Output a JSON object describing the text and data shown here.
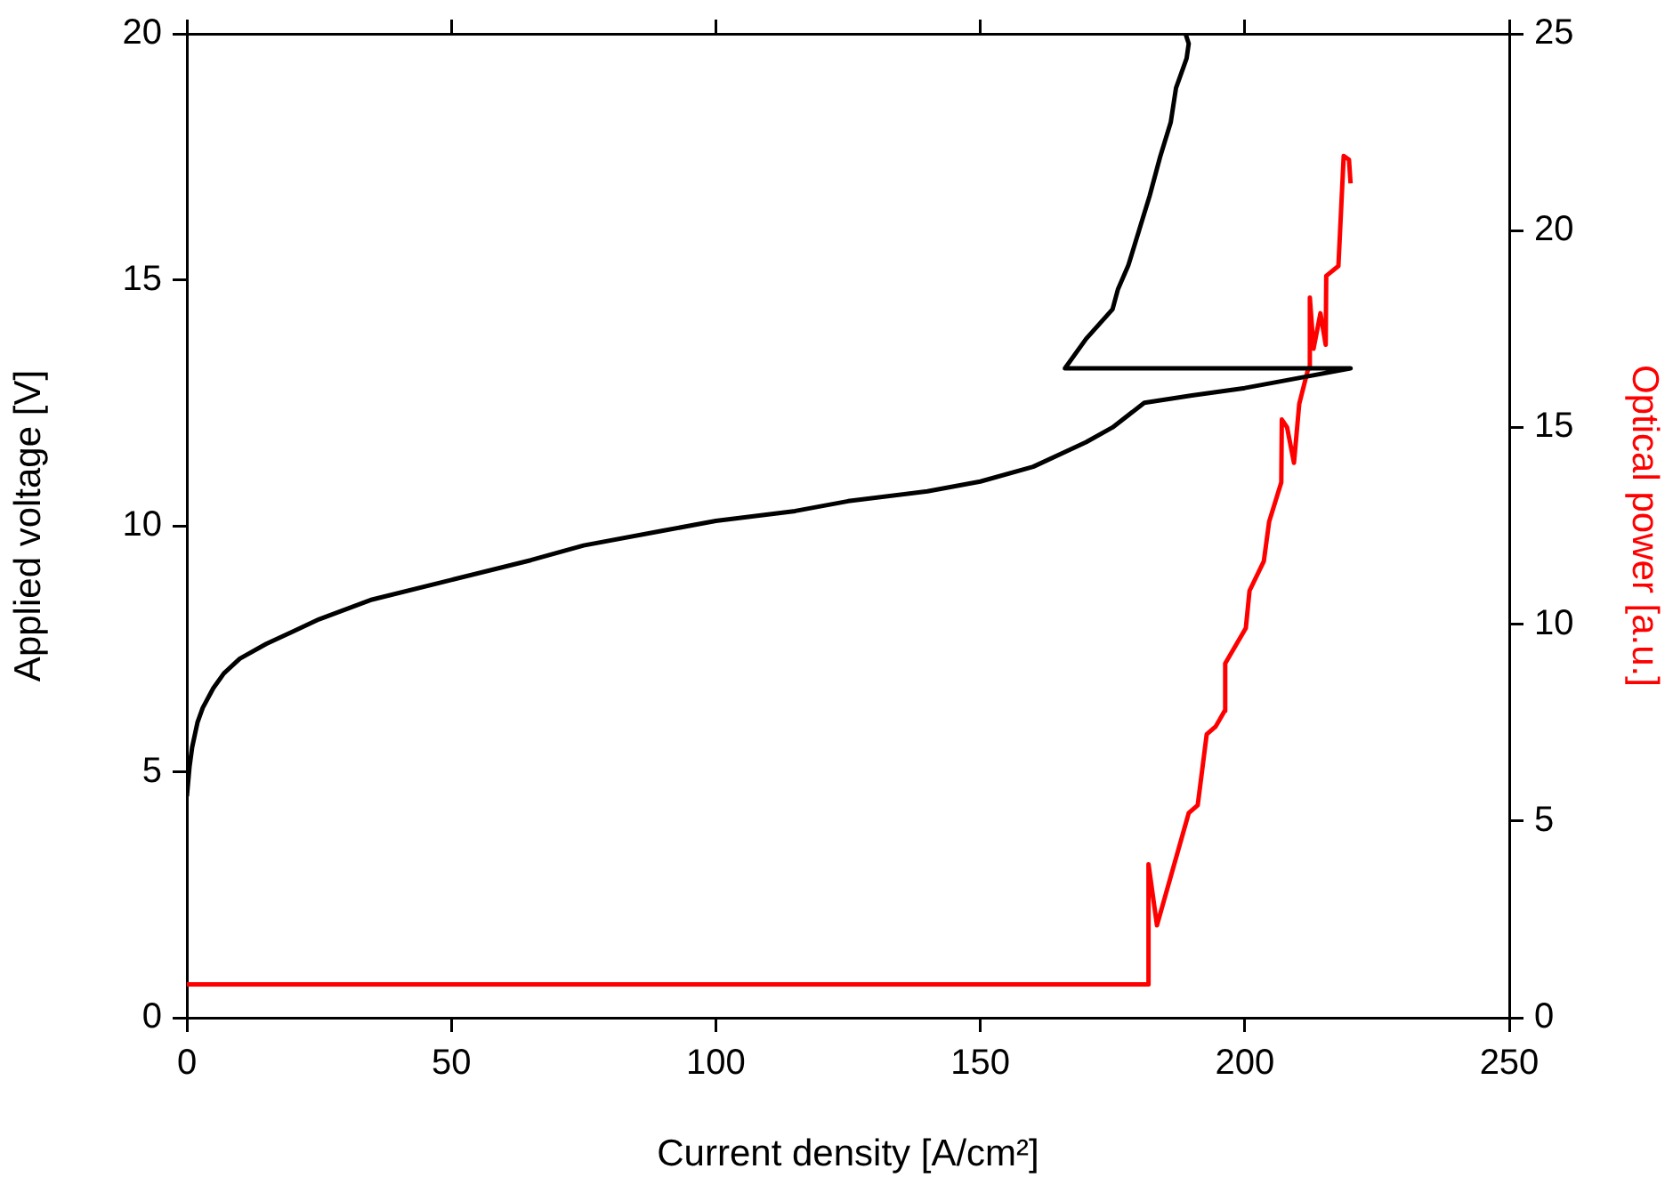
{
  "chart_data": {
    "type": "line",
    "xlabel": "Current density [A/cm²]",
    "ylabel": "Applied voltage [V]",
    "y2label": "Optical power [a.u.]",
    "xlim": [
      0,
      250
    ],
    "xticks": [
      0,
      50,
      100,
      150,
      200,
      250
    ],
    "ylim": [
      0,
      20
    ],
    "yticks": [
      0,
      5,
      10,
      15,
      20
    ],
    "y2lim": [
      0,
      25
    ],
    "y2ticks": [
      0,
      5,
      10,
      15,
      20,
      25
    ],
    "grid": false,
    "legend": false,
    "marker": "none",
    "line_style": "solid",
    "series": [
      {
        "color": "#000000",
        "x": [
          0,
          0.5,
          1,
          2,
          3,
          5,
          7,
          10,
          15,
          20,
          25,
          35,
          50,
          65,
          75,
          90,
          100,
          115,
          125,
          140,
          150,
          160,
          170,
          175,
          181,
          190,
          200,
          210,
          220,
          166,
          170,
          175,
          176,
          178,
          180,
          182,
          184,
          186,
          187,
          189,
          189.4,
          188.8
        ],
        "values": [
          4.5,
          5.1,
          5.5,
          6,
          6.3,
          6.7,
          7,
          7.3,
          7.6,
          7.85,
          8.1,
          8.5,
          8.9,
          9.3,
          9.6,
          9.9,
          10.1,
          10.3,
          10.5,
          10.7,
          10.9,
          11.2,
          11.7,
          12,
          12.5,
          12.65,
          12.8,
          13,
          13.2,
          13.2,
          13.8,
          14.4,
          14.8,
          15.3,
          16,
          16.7,
          17.5,
          18.2,
          18.9,
          19.5,
          19.8,
          20
        ]
      },
      {
        "color": "#ff0000",
        "axis": "y2",
        "x": [
          0,
          181.7,
          181.8,
          183.4,
          189.4,
          191.1,
          192.8,
          194.5,
          196.2,
          196.3,
          200.2,
          200.9,
          203.6,
          204.6,
          206.9,
          207,
          208,
          209.3,
          210.3,
          212,
          212.3,
          213,
          214.3,
          215.3,
          215.4,
          217.7,
          218.7,
          219.7,
          220
        ],
        "values": [
          0.85,
          0.85,
          3.9,
          2.35,
          5.2,
          5.4,
          7.2,
          7.4,
          7.8,
          9,
          9.9,
          10.85,
          11.6,
          12.6,
          13.6,
          15.2,
          15,
          14.1,
          15.6,
          16.5,
          18.3,
          17,
          17.9,
          17.1,
          18.85,
          19.1,
          21.9,
          21.8,
          21.2
        ]
      }
    ]
  }
}
